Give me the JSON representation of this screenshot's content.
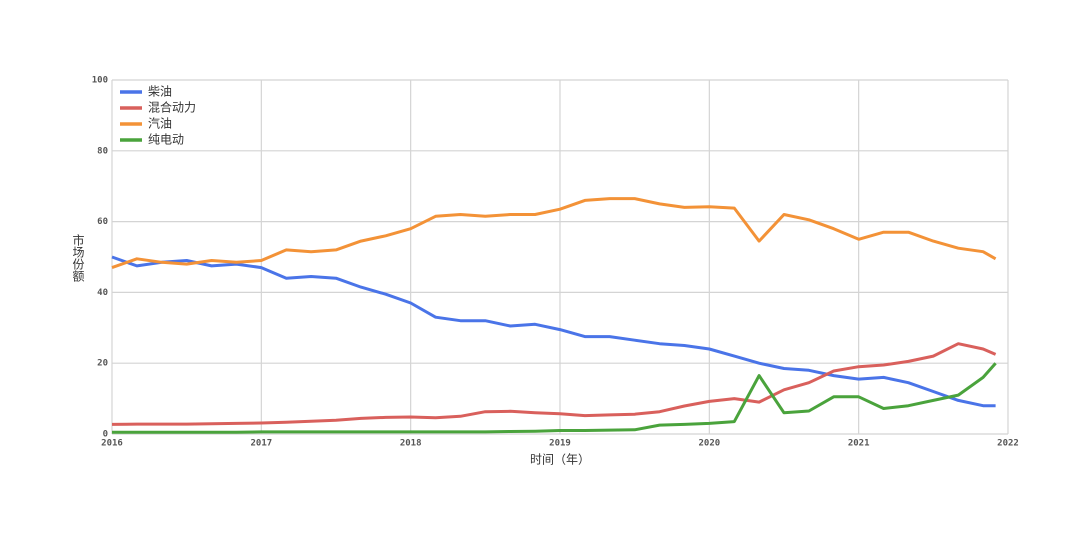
{
  "chart_data": {
    "type": "line",
    "x": [
      2016,
      2016.167,
      2016.333,
      2016.5,
      2016.667,
      2016.833,
      2017,
      2017.167,
      2017.333,
      2017.5,
      2017.667,
      2017.833,
      2018,
      2018.167,
      2018.333,
      2018.5,
      2018.667,
      2018.833,
      2019,
      2019.167,
      2019.333,
      2019.5,
      2019.667,
      2019.833,
      2020,
      2020.167,
      2020.333,
      2020.5,
      2020.667,
      2020.833,
      2021,
      2021.167,
      2021.333,
      2021.5,
      2021.667,
      2021.833,
      2021.917
    ],
    "series": [
      {
        "name": "柴油",
        "color": "#4a74e8",
        "values": [
          50,
          47.5,
          48.5,
          49,
          47.5,
          48,
          47,
          44,
          44.5,
          44,
          41.5,
          39.5,
          37,
          33,
          32,
          32,
          30.5,
          31,
          29.5,
          27.5,
          27.5,
          26.5,
          25.5,
          25,
          24,
          22,
          20,
          18.5,
          18,
          16.5,
          15.5,
          16,
          14.5,
          12,
          9.5,
          8,
          8
        ]
      },
      {
        "name": "混合动力",
        "color": "#d9605c",
        "values": [
          2.7,
          2.8,
          2.8,
          2.8,
          2.9,
          3,
          3.1,
          3.3,
          3.6,
          3.9,
          4.4,
          4.7,
          4.8,
          4.6,
          5,
          6.3,
          6.4,
          6,
          5.7,
          5.2,
          5.4,
          5.6,
          6.3,
          7.9,
          9.2,
          10,
          9,
          12.5,
          14.5,
          17.8,
          19,
          19.5,
          20.5,
          22,
          25.5,
          24,
          22.5
        ]
      },
      {
        "name": "汽油",
        "color": "#f39237",
        "values": [
          47,
          49.5,
          48.5,
          48,
          49,
          48.5,
          49,
          52,
          51.5,
          52,
          54.5,
          56,
          58,
          61.5,
          62,
          61.5,
          62,
          62,
          63.5,
          66,
          66.5,
          66.5,
          65,
          64,
          64.2,
          63.8,
          54.5,
          62,
          60.5,
          58,
          55,
          57,
          57,
          54.5,
          52.5,
          51.5,
          49.5
        ]
      },
      {
        "name": "纯电动",
        "color": "#4aa33c",
        "values": [
          0.5,
          0.5,
          0.5,
          0.5,
          0.5,
          0.5,
          0.6,
          0.6,
          0.6,
          0.6,
          0.6,
          0.6,
          0.6,
          0.6,
          0.6,
          0.6,
          0.7,
          0.8,
          1,
          1,
          1.1,
          1.2,
          2.5,
          2.7,
          3,
          3.5,
          16.5,
          6,
          6.5,
          10.5,
          10.5,
          7.2,
          8,
          9.5,
          11,
          16,
          20
        ]
      }
    ],
    "xlabel": "时间（年）",
    "ylabel": "市场份额",
    "xlim": [
      2016,
      2022
    ],
    "xticks": [
      2016,
      2017,
      2018,
      2019,
      2020,
      2021,
      2022
    ],
    "ylim": [
      0,
      100
    ],
    "yticks": [
      0,
      20,
      40,
      60,
      80,
      100
    ],
    "grid": true,
    "legend": "upper-left"
  }
}
